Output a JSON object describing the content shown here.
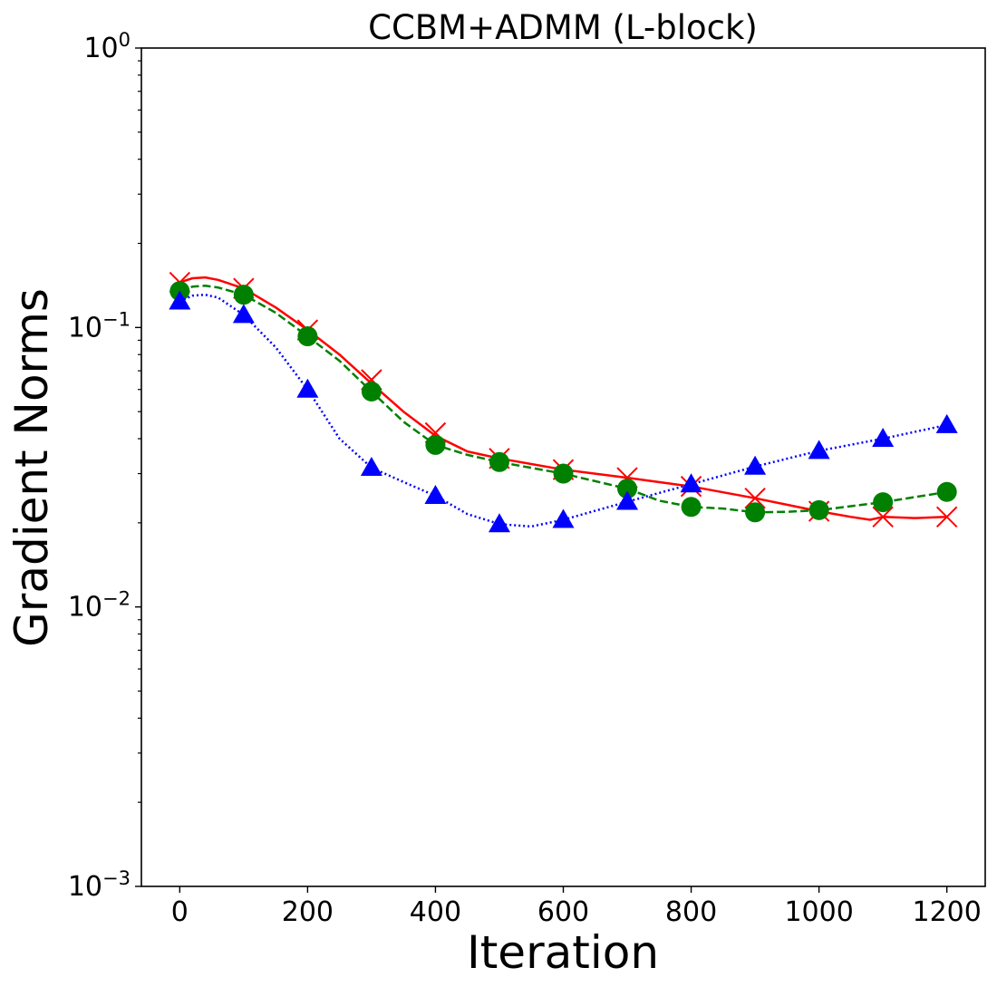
{
  "chart_data": {
    "type": "line",
    "title": "CCBM+ADMM (L-block)",
    "xlabel": "Iteration",
    "ylabel": "Gradient Norms",
    "yscale": "log",
    "xlim": [
      -60,
      1260
    ],
    "ylim": [
      0.001,
      1
    ],
    "xticks": [
      0,
      200,
      400,
      600,
      800,
      1000,
      1200
    ],
    "xtick_labels": [
      "0",
      "200",
      "400",
      "600",
      "800",
      "1000",
      "1200"
    ],
    "yticks": [
      {
        "value": 0.001,
        "base": "10",
        "exp": "−3"
      },
      {
        "value": 0.01,
        "base": "10",
        "exp": "−2"
      },
      {
        "value": 0.1,
        "base": "10",
        "exp": "−1"
      },
      {
        "value": 1,
        "base": "10",
        "exp": "0"
      }
    ],
    "grid": false,
    "series": [
      {
        "name": "red",
        "color": "#ff0000",
        "dash": "solid",
        "marker": "x",
        "curve_x": [
          0,
          20,
          40,
          60,
          100,
          150,
          200,
          250,
          300,
          350,
          400,
          450,
          500,
          600,
          700,
          800,
          900,
          1000,
          1050,
          1080,
          1100,
          1150,
          1200
        ],
        "curve_y": [
          0.145,
          0.15,
          0.151,
          0.148,
          0.138,
          0.118,
          0.098,
          0.08,
          0.063,
          0.05,
          0.041,
          0.036,
          0.034,
          0.031,
          0.029,
          0.027,
          0.0245,
          0.022,
          0.021,
          0.0205,
          0.021,
          0.0208,
          0.021
        ],
        "marker_x": [
          0,
          100,
          200,
          300,
          400,
          500,
          600,
          700,
          800,
          900,
          1000,
          1100,
          1200
        ],
        "marker_y": [
          0.145,
          0.138,
          0.098,
          0.065,
          0.042,
          0.034,
          0.031,
          0.029,
          0.027,
          0.0245,
          0.022,
          0.021,
          0.021
        ]
      },
      {
        "name": "green",
        "color": "#008000",
        "dash": "dashed",
        "marker": "circle",
        "curve_x": [
          0,
          20,
          40,
          60,
          100,
          150,
          200,
          250,
          300,
          350,
          400,
          450,
          500,
          600,
          700,
          750,
          800,
          850,
          900,
          950,
          1000,
          1100,
          1200
        ],
        "curve_y": [
          0.135,
          0.14,
          0.141,
          0.139,
          0.131,
          0.113,
          0.093,
          0.076,
          0.059,
          0.046,
          0.038,
          0.035,
          0.033,
          0.03,
          0.0265,
          0.024,
          0.0228,
          0.0225,
          0.0218,
          0.0219,
          0.0222,
          0.0237,
          0.0258
        ],
        "marker_x": [
          0,
          100,
          200,
          300,
          400,
          500,
          600,
          700,
          800,
          900,
          1000,
          1100,
          1200
        ],
        "marker_y": [
          0.135,
          0.131,
          0.093,
          0.059,
          0.038,
          0.033,
          0.03,
          0.0265,
          0.0228,
          0.0218,
          0.0222,
          0.0237,
          0.0258
        ]
      },
      {
        "name": "blue",
        "color": "#0000ff",
        "dash": "dotted",
        "marker": "triangle",
        "curve_x": [
          0,
          20,
          40,
          60,
          100,
          150,
          200,
          250,
          300,
          350,
          400,
          450,
          500,
          550,
          600,
          700,
          800,
          900,
          1000,
          1100,
          1200
        ],
        "curve_y": [
          0.124,
          0.13,
          0.131,
          0.128,
          0.111,
          0.085,
          0.06,
          0.04,
          0.0315,
          0.028,
          0.025,
          0.0215,
          0.0198,
          0.0194,
          0.0205,
          0.0238,
          0.0275,
          0.0318,
          0.0362,
          0.04,
          0.0448
        ],
        "marker_x": [
          0,
          100,
          200,
          300,
          400,
          500,
          600,
          700,
          800,
          900,
          1000,
          1100,
          1200
        ],
        "marker_y": [
          0.124,
          0.111,
          0.06,
          0.0315,
          0.025,
          0.0198,
          0.0205,
          0.0238,
          0.0275,
          0.0318,
          0.0362,
          0.04,
          0.0448
        ]
      }
    ]
  }
}
